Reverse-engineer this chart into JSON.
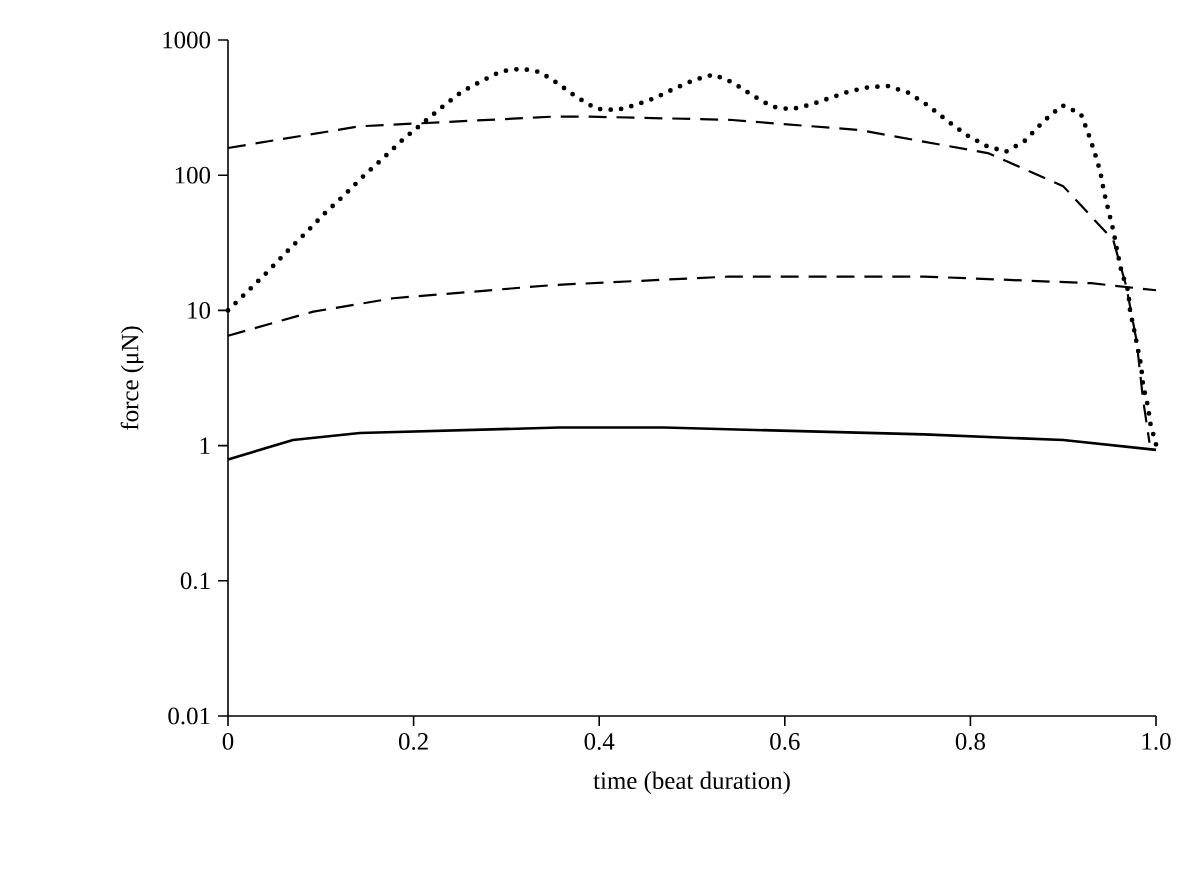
{
  "chart_data": {
    "type": "line",
    "xlabel": "time (beat duration)",
    "ylabel": "force (μN)",
    "log": "y",
    "grid": false,
    "xlim": [
      0,
      1
    ],
    "xticks": [
      0,
      0.2,
      0.4,
      0.6,
      0.8,
      {
        "value": 1,
        "label": "1.0"
      }
    ],
    "ylim": [
      0.01,
      1000
    ],
    "yticks": [
      0.01,
      0.1,
      1,
      10,
      100,
      1000
    ],
    "series": [
      {
        "color": "#000000",
        "line_style": "solid",
        "x": [
          0,
          0.07,
          0.142,
          0.357,
          0.47,
          0.75,
          0.9,
          1.0
        ],
        "values": [
          0.79,
          1.1,
          1.24,
          1.36,
          1.36,
          1.21,
          1.1,
          0.93
        ]
      },
      {
        "color": "#000000",
        "line_style": "dashed",
        "x": [
          0,
          0.092,
          0.178,
          0.35,
          0.54,
          0.75,
          0.93,
          1.0
        ],
        "values": [
          6.5,
          9.8,
          12.3,
          15.4,
          17.8,
          17.8,
          15.9,
          14.1
        ]
      },
      {
        "color": "#000000",
        "line_style": "dashed",
        "x": [
          0,
          0.142,
          0.35,
          0.39,
          0.54,
          0.68,
          0.82,
          0.9,
          0.954,
          0.968,
          0.979,
          0.986,
          0.993
        ],
        "values": [
          159,
          230,
          271,
          271,
          257,
          216,
          145,
          83,
          33,
          15,
          6,
          2.2,
          1.05
        ]
      },
      {
        "color": "#000000",
        "line_style": "dotted",
        "x": [
          0,
          0.021,
          0.043,
          0.063,
          0.083,
          0.104,
          0.126,
          0.147,
          0.168,
          0.189,
          0.231,
          0.252,
          0.274,
          0.294,
          0.316,
          0.336,
          0.355,
          0.376,
          0.397,
          0.419,
          0.439,
          0.46,
          0.481,
          0.502,
          0.523,
          0.544,
          0.565,
          0.586,
          0.607,
          0.628,
          0.649,
          0.67,
          0.69,
          0.711,
          0.733,
          0.754,
          0.774,
          0.796,
          0.817,
          0.838,
          0.858,
          0.879,
          0.899,
          0.919,
          0.927,
          0.934,
          0.94,
          0.944,
          0.949,
          0.954,
          0.958,
          0.963,
          0.97,
          0.972,
          0.976,
          0.984,
          0.986,
          0.991,
          0.994,
          1.0
        ],
        "values": [
          10,
          13.8,
          19.4,
          27,
          37,
          52,
          72,
          100,
          135,
          185,
          320,
          415,
          500,
          586,
          614,
          580,
          479,
          377,
          310,
          303,
          330,
          373,
          437,
          505,
          555,
          484,
          390,
          322,
          307,
          333,
          373,
          418,
          447,
          457,
          408,
          329,
          256,
          198,
          165,
          149,
          178,
          251,
          329,
          284,
          204,
          146,
          106,
          75,
          54,
          39,
          28,
          19,
          14,
          10,
          7.4,
          3.9,
          2.8,
          2.0,
          1.45,
          1.02
        ]
      }
    ]
  }
}
